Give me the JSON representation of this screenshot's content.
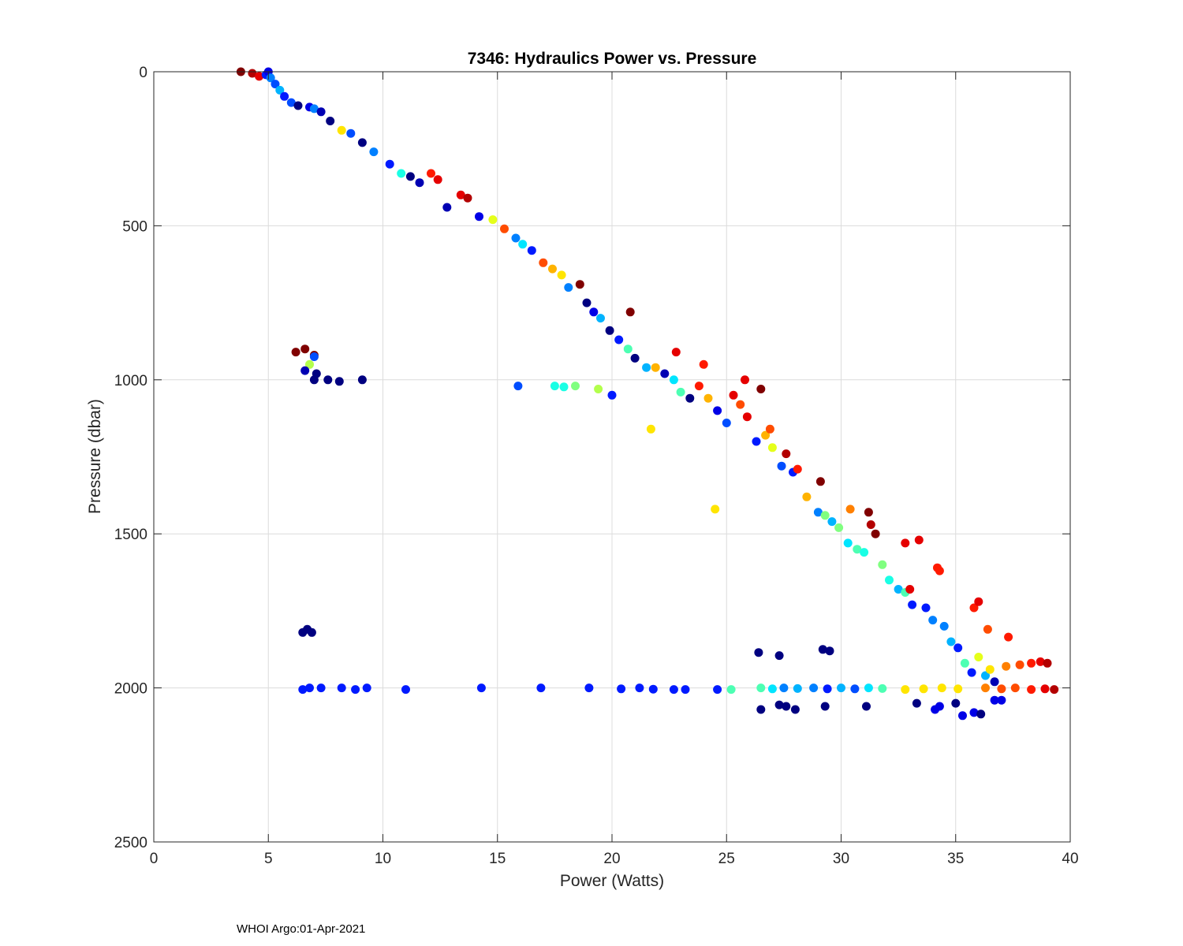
{
  "chart_data": {
    "type": "scatter",
    "title": "7346: Hydraulics Power vs. Pressure",
    "xlabel": "Power (Watts)",
    "ylabel": "Pressure (dbar)",
    "xlim": [
      0,
      40
    ],
    "ylim": [
      0,
      2500
    ],
    "y_reversed": true,
    "grid": true,
    "xticks": [
      0,
      5,
      10,
      15,
      20,
      25,
      30,
      35,
      40
    ],
    "yticks": [
      0,
      500,
      1000,
      1500,
      2000,
      2500
    ],
    "xtick_labels": [
      "0",
      "5",
      "10",
      "15",
      "20",
      "25",
      "30",
      "35",
      "40"
    ],
    "ytick_labels": [
      "0",
      "500",
      "1000",
      "1500",
      "2000",
      "2500"
    ],
    "colormap": "jet",
    "color_note": "point color encodes profile index (dark blue = early, dark red = late)",
    "series": [
      {
        "name": "trend-points",
        "points": [
          [
            3.8,
            0,
            1.0
          ],
          [
            4.3,
            5,
            0.95
          ],
          [
            4.6,
            15,
            0.9
          ],
          [
            4.9,
            10,
            0.15
          ],
          [
            5.0,
            0,
            0.1
          ],
          [
            5.1,
            20,
            0.25
          ],
          [
            5.3,
            40,
            0.2
          ],
          [
            5.5,
            60,
            0.3
          ],
          [
            5.7,
            80,
            0.15
          ],
          [
            6.0,
            100,
            0.2
          ],
          [
            6.3,
            110,
            0.0
          ],
          [
            6.8,
            115,
            0.1
          ],
          [
            7.0,
            120,
            0.25
          ],
          [
            7.3,
            130,
            0.05
          ],
          [
            7.7,
            160,
            0.0
          ],
          [
            8.2,
            190,
            0.65
          ],
          [
            8.6,
            200,
            0.2
          ],
          [
            9.1,
            230,
            0.0
          ],
          [
            9.6,
            260,
            0.25
          ],
          [
            10.3,
            300,
            0.15
          ],
          [
            10.8,
            330,
            0.4
          ],
          [
            11.2,
            340,
            0.0
          ],
          [
            11.6,
            360,
            0.05
          ],
          [
            12.1,
            330,
            0.85
          ],
          [
            12.4,
            350,
            0.9
          ],
          [
            12.8,
            440,
            0.05
          ],
          [
            13.4,
            400,
            0.9
          ],
          [
            13.7,
            410,
            0.95
          ],
          [
            14.2,
            470,
            0.1
          ],
          [
            14.8,
            480,
            0.6
          ],
          [
            15.3,
            510,
            0.8
          ],
          [
            15.8,
            540,
            0.25
          ],
          [
            16.1,
            560,
            0.35
          ],
          [
            16.5,
            580,
            0.15
          ],
          [
            17.0,
            620,
            0.8
          ],
          [
            17.4,
            640,
            0.7
          ],
          [
            17.8,
            660,
            0.65
          ],
          [
            18.1,
            700,
            0.25
          ],
          [
            18.6,
            690,
            1.0
          ],
          [
            18.9,
            750,
            0.0
          ],
          [
            19.2,
            780,
            0.1
          ],
          [
            19.5,
            800,
            0.3
          ],
          [
            19.9,
            840,
            0.0
          ],
          [
            20.3,
            870,
            0.15
          ],
          [
            20.7,
            900,
            0.45
          ],
          [
            21.0,
            930,
            0.0
          ],
          [
            21.5,
            960,
            0.3
          ],
          [
            21.9,
            960,
            0.7
          ],
          [
            22.3,
            980,
            0.05
          ],
          [
            22.7,
            1000,
            0.35
          ],
          [
            23.0,
            1040,
            0.45
          ],
          [
            23.4,
            1060,
            0.0
          ],
          [
            23.8,
            1020,
            0.85
          ],
          [
            24.2,
            1060,
            0.7
          ],
          [
            24.6,
            1100,
            0.1
          ],
          [
            25.0,
            1140,
            0.2
          ],
          [
            25.3,
            1050,
            0.9
          ],
          [
            25.6,
            1080,
            0.8
          ],
          [
            25.9,
            1120,
            0.9
          ],
          [
            26.3,
            1200,
            0.15
          ],
          [
            26.7,
            1180,
            0.7
          ],
          [
            27.0,
            1220,
            0.6
          ],
          [
            27.4,
            1280,
            0.2
          ],
          [
            27.9,
            1300,
            0.15
          ],
          [
            28.5,
            1380,
            0.7
          ],
          [
            29.0,
            1430,
            0.25
          ],
          [
            29.3,
            1440,
            0.5
          ],
          [
            29.6,
            1460,
            0.3
          ],
          [
            29.9,
            1480,
            0.5
          ],
          [
            30.3,
            1530,
            0.35
          ],
          [
            30.7,
            1550,
            0.45
          ],
          [
            31.0,
            1560,
            0.4
          ],
          [
            31.2,
            1430,
            1.0
          ],
          [
            31.5,
            1500,
            1.0
          ],
          [
            31.8,
            1600,
            0.5
          ],
          [
            32.1,
            1650,
            0.4
          ],
          [
            32.5,
            1680,
            0.3
          ],
          [
            32.8,
            1690,
            0.45
          ],
          [
            33.1,
            1730,
            0.15
          ],
          [
            33.4,
            1520,
            0.9
          ],
          [
            33.7,
            1740,
            0.15
          ],
          [
            34.0,
            1780,
            0.25
          ],
          [
            34.3,
            1620,
            0.85
          ],
          [
            34.5,
            1800,
            0.25
          ],
          [
            34.8,
            1850,
            0.3
          ],
          [
            35.1,
            1870,
            0.15
          ],
          [
            35.4,
            1920,
            0.45
          ],
          [
            35.7,
            1950,
            0.15
          ],
          [
            36.0,
            1900,
            0.6
          ],
          [
            36.3,
            1960,
            0.3
          ],
          [
            36.7,
            1980,
            0.05
          ]
        ]
      },
      {
        "name": "bottom-row-2000",
        "points": [
          [
            6.5,
            2005,
            0.15
          ],
          [
            6.8,
            2000,
            0.15
          ],
          [
            7.3,
            2000,
            0.15
          ],
          [
            8.2,
            2000,
            0.15
          ],
          [
            8.8,
            2005,
            0.15
          ],
          [
            9.3,
            2000,
            0.15
          ],
          [
            11.0,
            2005,
            0.15
          ],
          [
            14.3,
            2000,
            0.15
          ],
          [
            16.9,
            2000,
            0.15
          ],
          [
            19.0,
            2000,
            0.15
          ],
          [
            20.4,
            2003,
            0.15
          ],
          [
            21.2,
            2000,
            0.15
          ],
          [
            21.8,
            2004,
            0.15
          ],
          [
            22.7,
            2005,
            0.15
          ],
          [
            23.2,
            2005,
            0.15
          ],
          [
            24.6,
            2005,
            0.15
          ],
          [
            25.2,
            2005,
            0.45
          ],
          [
            26.5,
            2000,
            0.45
          ],
          [
            27.0,
            2003,
            0.35
          ],
          [
            27.5,
            2000,
            0.25
          ],
          [
            28.1,
            2002,
            0.3
          ],
          [
            28.8,
            2000,
            0.25
          ],
          [
            29.4,
            2003,
            0.15
          ],
          [
            30.0,
            2000,
            0.3
          ],
          [
            30.6,
            2003,
            0.2
          ],
          [
            31.2,
            2000,
            0.35
          ],
          [
            31.8,
            2002,
            0.45
          ],
          [
            32.8,
            2005,
            0.65
          ],
          [
            33.6,
            2003,
            0.65
          ],
          [
            34.4,
            2000,
            0.65
          ],
          [
            35.1,
            2003,
            0.65
          ],
          [
            36.3,
            2000,
            0.75
          ],
          [
            37.0,
            2003,
            0.8
          ],
          [
            37.6,
            2000,
            0.8
          ],
          [
            38.3,
            2005,
            0.85
          ],
          [
            38.9,
            2003,
            0.9
          ],
          [
            39.3,
            2005,
            0.95
          ]
        ]
      },
      {
        "name": "below-2000",
        "points": [
          [
            26.5,
            2070,
            0.0
          ],
          [
            27.3,
            2055,
            0.0
          ],
          [
            27.6,
            2060,
            0.0
          ],
          [
            28.0,
            2070,
            0.0
          ],
          [
            29.3,
            2060,
            0.0
          ],
          [
            31.1,
            2060,
            0.0
          ],
          [
            33.3,
            2050,
            0.0
          ],
          [
            34.1,
            2070,
            0.1
          ],
          [
            34.3,
            2060,
            0.1
          ],
          [
            35.0,
            2050,
            0.0
          ],
          [
            35.3,
            2090,
            0.1
          ],
          [
            35.8,
            2080,
            0.1
          ],
          [
            36.1,
            2085,
            0.0
          ],
          [
            36.7,
            2040,
            0.1
          ],
          [
            37.0,
            2040,
            0.1
          ]
        ]
      },
      {
        "name": "upper-right-branch",
        "points": [
          [
            36.5,
            1940,
            0.65
          ],
          [
            37.2,
            1930,
            0.75
          ],
          [
            37.8,
            1925,
            0.8
          ],
          [
            38.3,
            1920,
            0.85
          ],
          [
            38.7,
            1915,
            0.9
          ],
          [
            39.0,
            1920,
            0.95
          ],
          [
            37.3,
            1835,
            0.85
          ],
          [
            36.4,
            1810,
            0.8
          ],
          [
            35.8,
            1740,
            0.85
          ],
          [
            36.0,
            1720,
            0.9
          ],
          [
            33.0,
            1680,
            0.9
          ],
          [
            34.2,
            1610,
            0.85
          ],
          [
            32.8,
            1530,
            0.9
          ],
          [
            31.3,
            1470,
            0.95
          ],
          [
            30.4,
            1420,
            0.75
          ],
          [
            29.1,
            1330,
            1.0
          ],
          [
            28.1,
            1290,
            0.85
          ],
          [
            27.6,
            1240,
            0.95
          ],
          [
            26.9,
            1160,
            0.8
          ],
          [
            26.5,
            1030,
            1.0
          ],
          [
            25.8,
            1000,
            0.9
          ],
          [
            24.0,
            950,
            0.85
          ],
          [
            22.8,
            910,
            0.9
          ],
          [
            20.8,
            780,
            1.0
          ]
        ]
      },
      {
        "name": "outliers",
        "points": [
          [
            6.2,
            910,
            1.0
          ],
          [
            6.6,
            900,
            1.0
          ],
          [
            7.0,
            920,
            1.0
          ],
          [
            6.8,
            950,
            0.55
          ],
          [
            7.0,
            925,
            0.2
          ],
          [
            6.6,
            970,
            0.05
          ],
          [
            7.1,
            980,
            0.0
          ],
          [
            7.0,
            1000,
            0.0
          ],
          [
            7.6,
            1000,
            0.0
          ],
          [
            8.1,
            1005,
            0.0
          ],
          [
            9.1,
            1000,
            0.0
          ],
          [
            15.9,
            1020,
            0.2
          ],
          [
            17.5,
            1020,
            0.4
          ],
          [
            17.9,
            1023,
            0.4
          ],
          [
            18.4,
            1020,
            0.5
          ],
          [
            19.4,
            1030,
            0.55
          ],
          [
            20.0,
            1050,
            0.15
          ],
          [
            21.7,
            1160,
            0.65
          ],
          [
            24.5,
            1420,
            0.65
          ],
          [
            6.5,
            1820,
            0.0
          ],
          [
            6.7,
            1810,
            0.0
          ],
          [
            6.9,
            1820,
            0.0
          ],
          [
            26.4,
            1885,
            0.0
          ],
          [
            27.3,
            1895,
            0.0
          ],
          [
            29.2,
            1875,
            0.0
          ],
          [
            29.5,
            1880,
            0.0
          ]
        ]
      }
    ],
    "footer": "WHOI Argo:01-Apr-2021"
  }
}
